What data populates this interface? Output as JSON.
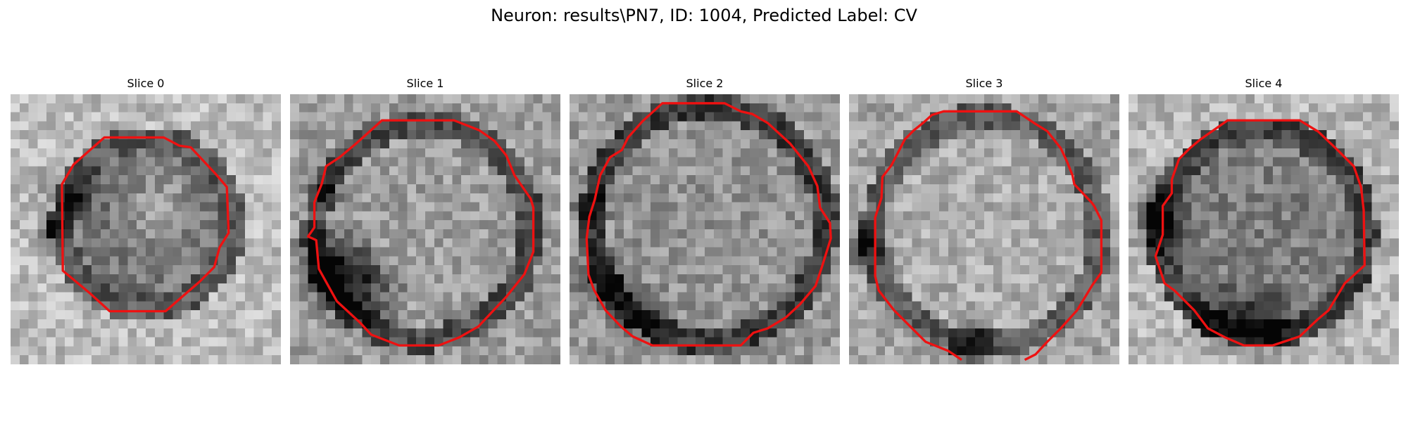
{
  "figure": {
    "title": "Neuron: results\\PN7, ID: 1004, Predicted Label: CV"
  },
  "colors": {
    "contour": "#ee1111",
    "background": "#ffffff"
  },
  "slices": [
    {
      "title": "Slice 0"
    },
    {
      "title": "Slice 1"
    },
    {
      "title": "Slice 2"
    },
    {
      "title": "Slice 3"
    },
    {
      "title": "Slice 4"
    }
  ]
}
